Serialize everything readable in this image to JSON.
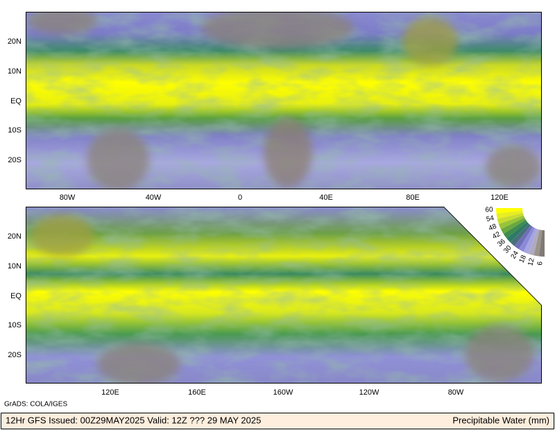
{
  "top_map": {
    "lat_labels": [
      "20N",
      "10N",
      "EQ",
      "10S",
      "20S"
    ],
    "lon_labels": [
      "80W",
      "40W",
      "0",
      "40E",
      "80E",
      "120E"
    ]
  },
  "bottom_map": {
    "lat_labels": [
      "20N",
      "10N",
      "EQ",
      "10S",
      "20S"
    ],
    "lon_labels": [
      "120E",
      "160E",
      "160W",
      "120W",
      "80W"
    ]
  },
  "colorbar": {
    "labels": [
      "60",
      "54",
      "48",
      "42",
      "36",
      "30",
      "24",
      "18",
      "12",
      "6"
    ]
  },
  "credit": "GrADS: COLA/IGES",
  "footer": {
    "left": "12Hr GFS Issued: 00Z29MAY2025 Valid: 12Z ??? 29 MAY 2025",
    "right": "Precipitable Water (mm)"
  }
}
